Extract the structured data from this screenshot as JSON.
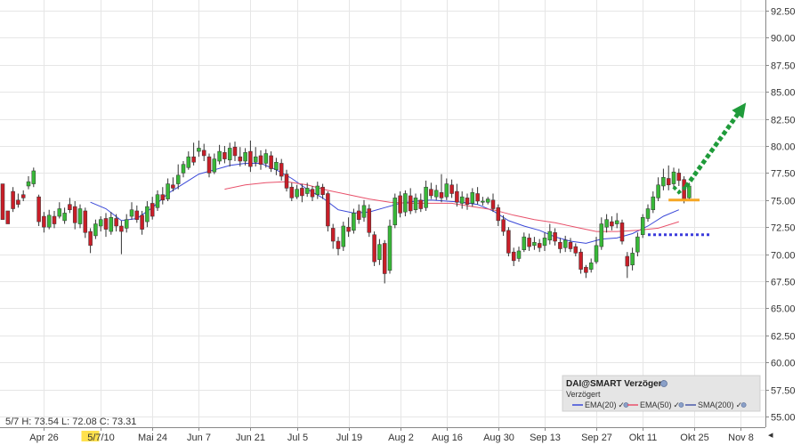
{
  "readout": {
    "text": "5/7  H: 73.54  L: 72.08  C: 73.31"
  },
  "highlight_label": "5/7",
  "legend": {
    "title": "DAI@SMART Verzögert",
    "subtitle": "Verzögert",
    "items": [
      {
        "label": "EMA(20)",
        "color": "#3a48d8"
      },
      {
        "label": "EMA(50)",
        "color": "#e8506a"
      },
      {
        "label": "SMA(200)",
        "color": "#4a5aa8"
      }
    ]
  },
  "colors": {
    "up": "#38b838",
    "down": "#c81e28",
    "grid": "#e6e6e6",
    "support_line": "#f5a623",
    "arrow": "#1f9b3a",
    "dotted_level": "#3b3bdb",
    "highlight_bg": "#ffe14d"
  },
  "chart_data": {
    "type": "candlestick",
    "y_axis": {
      "min": 55.0,
      "max": 92.5,
      "step": 2.5,
      "position": "right",
      "tick_labels": [
        "55.00",
        "57.50",
        "60.00",
        "62.50",
        "65.00",
        "67.50",
        "70.00",
        "72.50",
        "75.00",
        "77.50",
        "80.00",
        "82.50",
        "85.00",
        "87.50",
        "90.00",
        "92.50"
      ]
    },
    "x_axis": {
      "tick_labels": [
        "Apr 26",
        "5/7/10",
        "Mai 24",
        "Jun 7",
        "Jun 21",
        "Jul 5",
        "Jul 19",
        "Aug 2",
        "Aug 16",
        "Aug 30",
        "Sep 13",
        "Sep 27",
        "Okt 11",
        "Okt 25",
        "Nov 8"
      ],
      "tick_index": [
        8,
        19,
        29,
        38,
        48,
        57,
        67,
        77,
        86,
        96,
        105,
        115,
        124,
        134,
        143
      ]
    },
    "grid": true,
    "legend_position": "bottom-right",
    "candles": [
      [
        76.5,
        73.2,
        74.8,
        73.5
      ],
      [
        74.0,
        72.8,
        73.6,
        73.0
      ],
      [
        75.8,
        74.2,
        76.2,
        73.9
      ],
      [
        75.0,
        74.6,
        75.6,
        74.3
      ],
      [
        75.5,
        75.2,
        75.9,
        74.9
      ],
      [
        76.3,
        76.7,
        77.2,
        76.0
      ],
      [
        76.5,
        77.7,
        78.0,
        76.2
      ],
      [
        75.3,
        73.0,
        75.5,
        72.6
      ],
      [
        73.5,
        72.5,
        73.9,
        72.0
      ],
      [
        72.5,
        73.6,
        74.1,
        72.3
      ],
      [
        73.5,
        72.8,
        74.0,
        72.4
      ],
      [
        73.5,
        74.2,
        74.8,
        73.3
      ],
      [
        73.1,
        73.8,
        74.3,
        72.8
      ],
      [
        74.6,
        74.1,
        75.2,
        73.8
      ],
      [
        74.4,
        72.9,
        74.9,
        72.3
      ],
      [
        72.8,
        74.2,
        74.6,
        72.4
      ],
      [
        74.0,
        72.0,
        74.3,
        71.5
      ],
      [
        72.1,
        70.8,
        72.4,
        70.1
      ],
      [
        71.7,
        72.8,
        73.2,
        71.4
      ],
      [
        72.6,
        73.2,
        73.5,
        72.1
      ],
      [
        73.3,
        72.3,
        73.8,
        71.6
      ],
      [
        72.1,
        73.4,
        73.9,
        71.8
      ],
      [
        73.3,
        72.6,
        73.7,
        72.1
      ],
      [
        72.6,
        72.1,
        73.1,
        70.0
      ],
      [
        72.4,
        73.2,
        73.7,
        72.0
      ],
      [
        73.5,
        74.1,
        74.8,
        73.2
      ],
      [
        74.0,
        73.2,
        74.5,
        72.9
      ],
      [
        73.6,
        72.3,
        74.0,
        71.8
      ],
      [
        73.0,
        74.4,
        74.9,
        72.5
      ],
      [
        74.7,
        73.5,
        75.3,
        73.2
      ],
      [
        74.3,
        75.5,
        75.9,
        74.0
      ],
      [
        75.5,
        75.0,
        76.2,
        74.6
      ],
      [
        75.1,
        76.5,
        77.0,
        74.9
      ],
      [
        76.4,
        76.1,
        77.1,
        75.8
      ],
      [
        76.5,
        77.3,
        78.3,
        76.0
      ],
      [
        77.5,
        78.3,
        78.6,
        77.1
      ],
      [
        78.0,
        79.0,
        79.5,
        77.8
      ],
      [
        79.0,
        78.5,
        80.3,
        78.2
      ],
      [
        79.5,
        79.8,
        80.5,
        79.0
      ],
      [
        79.6,
        79.1,
        80.2,
        78.6
      ],
      [
        79.0,
        77.5,
        79.3,
        77.1
      ],
      [
        77.6,
        78.8,
        79.3,
        77.4
      ],
      [
        78.6,
        79.5,
        80.1,
        78.3
      ],
      [
        79.4,
        78.8,
        80.0,
        78.4
      ],
      [
        78.7,
        79.8,
        80.3,
        78.1
      ],
      [
        79.9,
        79.1,
        80.4,
        78.6
      ],
      [
        79.0,
        78.6,
        79.9,
        78.1
      ],
      [
        78.6,
        79.4,
        79.8,
        78.2
      ],
      [
        79.5,
        78.1,
        80.5,
        77.6
      ],
      [
        78.5,
        79.0,
        79.9,
        78.1
      ],
      [
        79.1,
        78.3,
        79.6,
        77.8
      ],
      [
        78.4,
        79.3,
        79.7,
        78.0
      ],
      [
        79.1,
        77.9,
        79.5,
        77.6
      ],
      [
        77.8,
        78.5,
        78.9,
        77.3
      ],
      [
        78.4,
        77.2,
        78.8,
        76.8
      ],
      [
        77.4,
        76.1,
        77.8,
        75.8
      ],
      [
        76.2,
        75.2,
        76.6,
        74.9
      ],
      [
        75.3,
        76.0,
        76.4,
        75.1
      ],
      [
        76.1,
        75.4,
        76.5,
        74.8
      ],
      [
        75.6,
        76.1,
        76.6,
        75.3
      ],
      [
        76.0,
        75.3,
        76.3,
        74.9
      ],
      [
        75.5,
        76.3,
        76.7,
        75.1
      ],
      [
        76.2,
        75.5,
        76.5,
        75.1
      ],
      [
        75.6,
        72.6,
        75.8,
        72.1
      ],
      [
        72.4,
        71.2,
        72.8,
        70.5
      ],
      [
        71.2,
        70.5,
        71.6,
        69.9
      ],
      [
        70.7,
        72.6,
        73.0,
        70.3
      ],
      [
        72.5,
        72.1,
        73.4,
        71.6
      ],
      [
        72.2,
        73.8,
        74.2,
        71.9
      ],
      [
        74.0,
        73.2,
        74.6,
        72.8
      ],
      [
        73.4,
        74.5,
        75.0,
        73.0
      ],
      [
        74.2,
        72.0,
        74.6,
        71.6
      ],
      [
        71.8,
        69.3,
        72.1,
        68.9
      ],
      [
        69.5,
        70.9,
        71.4,
        69.0
      ],
      [
        71.0,
        68.2,
        71.3,
        67.3
      ],
      [
        68.5,
        72.6,
        73.2,
        68.2
      ],
      [
        72.7,
        75.2,
        75.6,
        72.4
      ],
      [
        75.4,
        73.8,
        75.8,
        73.4
      ],
      [
        73.9,
        75.6,
        75.9,
        73.5
      ],
      [
        75.4,
        74.0,
        76.1,
        73.7
      ],
      [
        74.1,
        75.2,
        75.6,
        73.8
      ],
      [
        75.0,
        74.2,
        75.6,
        73.9
      ],
      [
        74.3,
        76.2,
        76.8,
        74.0
      ],
      [
        76.0,
        75.4,
        76.6,
        75.1
      ],
      [
        75.3,
        75.9,
        76.4,
        75.0
      ],
      [
        75.7,
        75.2,
        77.4,
        74.8
      ],
      [
        75.3,
        76.5,
        77.0,
        75.0
      ],
      [
        76.4,
        75.6,
        76.9,
        75.2
      ],
      [
        75.8,
        74.8,
        76.5,
        74.4
      ],
      [
        74.7,
        75.3,
        75.8,
        74.2
      ],
      [
        75.2,
        74.6,
        75.6,
        74.1
      ],
      [
        74.7,
        75.7,
        76.1,
        74.4
      ],
      [
        75.6,
        74.9,
        76.2,
        74.6
      ],
      [
        74.8,
        74.9,
        75.3,
        74.5
      ],
      [
        74.8,
        75.1,
        75.3,
        74.6
      ],
      [
        75.0,
        74.2,
        75.6,
        73.9
      ],
      [
        74.3,
        73.1,
        74.6,
        72.6
      ],
      [
        73.2,
        72.1,
        73.6,
        71.7
      ],
      [
        72.2,
        70.1,
        72.5,
        69.8
      ],
      [
        70.2,
        69.4,
        70.6,
        68.9
      ],
      [
        69.6,
        70.3,
        70.7,
        69.3
      ],
      [
        70.4,
        71.6,
        72.0,
        70.2
      ],
      [
        71.5,
        70.7,
        71.9,
        70.3
      ],
      [
        70.8,
        71.1,
        71.6,
        70.4
      ],
      [
        71.0,
        70.6,
        71.4,
        70.2
      ],
      [
        70.8,
        71.5,
        72.0,
        70.3
      ],
      [
        71.3,
        72.1,
        72.8,
        70.9
      ],
      [
        72.0,
        71.2,
        72.4,
        70.8
      ],
      [
        71.1,
        70.5,
        71.5,
        70.1
      ],
      [
        70.6,
        71.3,
        71.7,
        70.2
      ],
      [
        71.1,
        70.5,
        71.5,
        70.2
      ],
      [
        70.7,
        70.1,
        71.0,
        69.8
      ],
      [
        70.2,
        68.6,
        70.5,
        68.2
      ],
      [
        68.8,
        68.3,
        69.0,
        67.8
      ],
      [
        68.6,
        69.2,
        69.6,
        68.3
      ],
      [
        69.3,
        70.8,
        71.6,
        69.1
      ],
      [
        70.7,
        72.8,
        73.4,
        70.4
      ],
      [
        72.5,
        73.2,
        73.7,
        72.0
      ],
      [
        73.0,
        72.6,
        73.5,
        72.2
      ],
      [
        72.8,
        73.1,
        73.8,
        72.4
      ],
      [
        72.9,
        71.2,
        73.2,
        70.9
      ],
      [
        69.8,
        68.9,
        70.2,
        67.8
      ],
      [
        69.0,
        70.1,
        70.6,
        68.5
      ],
      [
        70.2,
        71.6,
        72.0,
        69.8
      ],
      [
        71.8,
        73.4,
        73.7,
        71.5
      ],
      [
        73.3,
        74.2,
        74.6,
        73.0
      ],
      [
        74.1,
        75.3,
        75.8,
        73.8
      ],
      [
        75.2,
        76.4,
        77.1,
        74.9
      ],
      [
        76.3,
        77.1,
        77.9,
        75.9
      ],
      [
        77.0,
        76.4,
        78.2,
        75.9
      ],
      [
        76.5,
        77.6,
        78.0,
        76.1
      ],
      [
        77.5,
        76.8,
        77.9,
        76.3
      ],
      [
        76.9,
        75.1,
        77.2,
        74.7
      ],
      [
        75.2,
        76.3,
        76.6,
        74.9
      ]
    ],
    "series": [
      {
        "name": "EMA(20)",
        "points": [
          [
            17,
            74.8
          ],
          [
            20,
            74.2
          ],
          [
            23,
            73.1
          ],
          [
            26,
            73.3
          ],
          [
            29,
            74.3
          ],
          [
            32,
            75.6
          ],
          [
            35,
            76.5
          ],
          [
            38,
            77.4
          ],
          [
            41,
            77.8
          ],
          [
            44,
            78.2
          ],
          [
            47,
            78.4
          ],
          [
            50,
            78.4
          ],
          [
            53,
            77.8
          ],
          [
            56,
            77.0
          ],
          [
            59,
            76.0
          ],
          [
            62,
            75.2
          ],
          [
            65,
            74.1
          ],
          [
            68,
            73.8
          ],
          [
            71,
            73.9
          ],
          [
            74,
            74.3
          ],
          [
            77,
            74.7
          ],
          [
            80,
            74.9
          ],
          [
            83,
            75.0
          ],
          [
            86,
            74.9
          ],
          [
            89,
            74.8
          ],
          [
            92,
            74.6
          ],
          [
            95,
            74.0
          ],
          [
            98,
            73.1
          ],
          [
            101,
            72.6
          ],
          [
            104,
            72.2
          ],
          [
            107,
            71.6
          ],
          [
            110,
            71.2
          ],
          [
            113,
            71.0
          ],
          [
            116,
            71.4
          ],
          [
            119,
            71.5
          ],
          [
            122,
            71.9
          ],
          [
            125,
            72.6
          ],
          [
            128,
            73.5
          ],
          [
            131,
            74.1
          ]
        ]
      },
      {
        "name": "EMA(50)",
        "points": [
          [
            43,
            76.0
          ],
          [
            47,
            76.4
          ],
          [
            51,
            76.6
          ],
          [
            55,
            76.7
          ],
          [
            59,
            76.4
          ],
          [
            63,
            75.9
          ],
          [
            67,
            75.5
          ],
          [
            71,
            75.1
          ],
          [
            75,
            74.8
          ],
          [
            79,
            74.7
          ],
          [
            83,
            74.7
          ],
          [
            87,
            74.7
          ],
          [
            91,
            74.4
          ],
          [
            95,
            74.1
          ],
          [
            99,
            73.6
          ],
          [
            103,
            73.2
          ],
          [
            107,
            72.9
          ],
          [
            111,
            72.5
          ],
          [
            115,
            72.1
          ],
          [
            119,
            72.1
          ],
          [
            123,
            72.2
          ],
          [
            127,
            72.4
          ],
          [
            131,
            73.0
          ]
        ]
      },
      {
        "name": "SMA(200)",
        "points": []
      }
    ],
    "annotations": [
      {
        "type": "horizontal_line",
        "level": 75.0,
        "from_index": 129,
        "to_index": 135
      },
      {
        "type": "dotted_level",
        "level": 71.8,
        "from_index": 125,
        "to_index": 137
      },
      {
        "type": "dotted_arrow",
        "from": [
          131,
          75.4
        ],
        "to": [
          144,
          84.0
        ]
      }
    ]
  }
}
